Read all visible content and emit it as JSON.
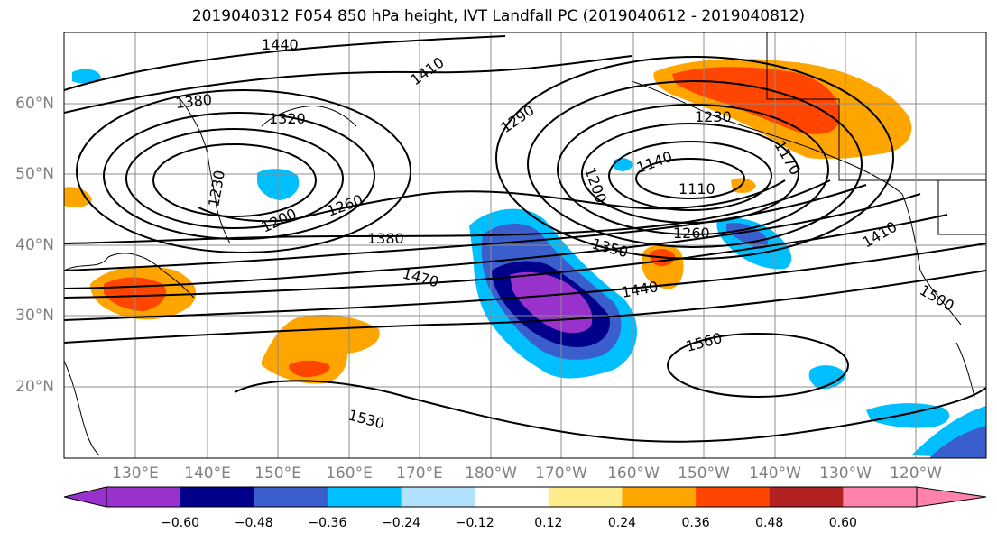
{
  "title": "2019040312 F054 850 hPa height, IVT Landfall PC (2019040612 - 2019040812)",
  "lon_labels": [
    "130°E",
    "140°E",
    "150°E",
    "160°E",
    "170°E",
    "180°W",
    "170°W",
    "160°W",
    "150°W",
    "140°W",
    "130°W",
    "120°W"
  ],
  "lat_labels": [
    "60°N",
    "50°N",
    "40°N",
    "30°N",
    "20°N"
  ],
  "contour_labels": [
    "1440",
    "1410",
    "1380",
    "1320",
    "1290",
    "1230",
    "1230",
    "1170",
    "1140",
    "1110",
    "1200",
    "1200",
    "1260",
    "1380",
    "1260",
    "1350",
    "1410",
    "1470",
    "1440",
    "1500",
    "1560",
    "1530"
  ],
  "colorbar": {
    "ticks": [
      "−0.60",
      "−0.48",
      "−0.36",
      "−0.24",
      "−0.12",
      "0.12",
      "0.24",
      "0.36",
      "0.48",
      "0.60"
    ],
    "colors": [
      "#9932cc",
      "#00008b",
      "#3a5fcd",
      "#00bfff",
      "#b0e2ff",
      "#ffffff",
      "#ffec8b",
      "#ffa500",
      "#ff4500",
      "#b22222",
      "#ff82ab"
    ]
  },
  "colors": {
    "neg_strong": "#9932cc",
    "neg_dark": "#00008b",
    "neg_mid": "#3a5fcd",
    "neg_light": "#00bfff",
    "pos_light": "#ffa500",
    "pos_mid": "#ff4500",
    "pos_pale": "#ffec8b"
  }
}
